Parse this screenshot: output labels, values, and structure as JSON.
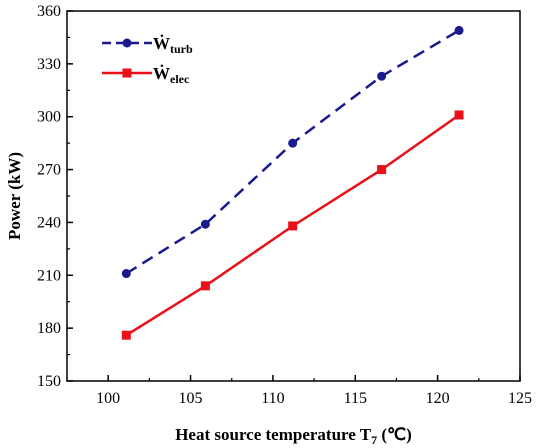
{
  "chart_data": {
    "type": "line",
    "xlabel": "Heat source temperature T",
    "xlabel_subscript": "7",
    "xlabel_unit": " (℃)",
    "ylabel": "Power (kW)",
    "xlim": [
      97.5,
      125
    ],
    "ylim": [
      150,
      360
    ],
    "xticks": [
      100,
      105,
      110,
      115,
      120,
      125
    ],
    "yticks": [
      150,
      180,
      210,
      240,
      270,
      300,
      330,
      360
    ],
    "x": [
      101.1,
      105.9,
      111.2,
      116.6,
      121.3
    ],
    "series": [
      {
        "name": "Ẇ",
        "name_subscript": "turb",
        "values": [
          211,
          239,
          285,
          323,
          349
        ],
        "color": "#1a1a8c",
        "line_style": "dashed",
        "marker": "circle"
      },
      {
        "name": "Ẇ",
        "name_subscript": "elec",
        "values": [
          176,
          204,
          238,
          270,
          301
        ],
        "color": "#e8111a",
        "line_style": "solid",
        "marker": "square"
      }
    ],
    "legend_position": "top-left",
    "grid": false
  }
}
